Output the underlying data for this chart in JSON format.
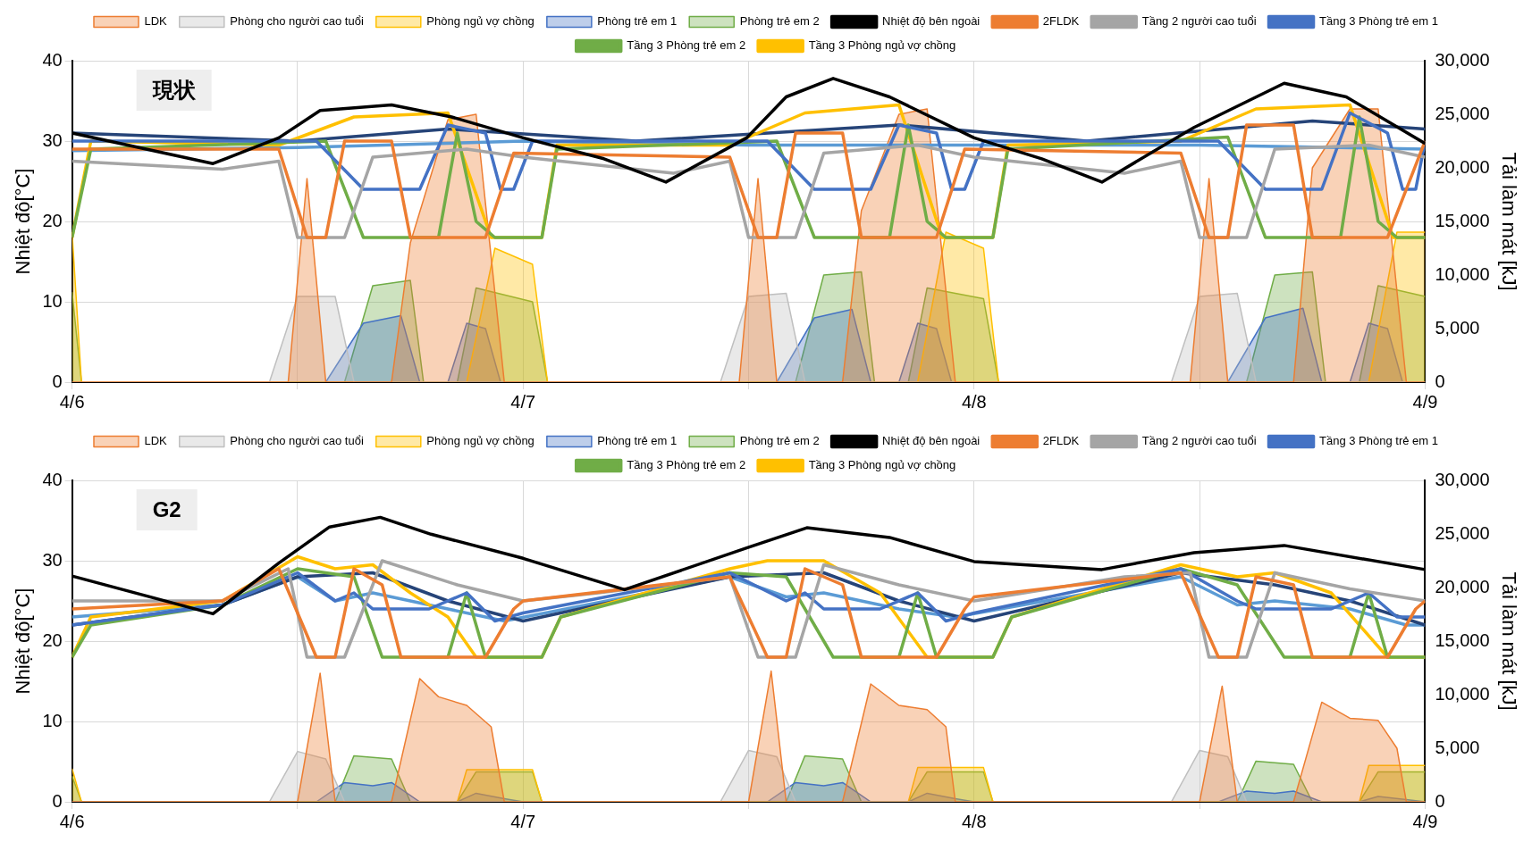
{
  "chart_data": [
    {
      "type": "line",
      "annotations": [
        "現状"
      ],
      "ylabel": "Nhiệt độ[°C]",
      "y2label": "Tải làm mát [kJ]",
      "xlim": [
        "--04-06",
        "--04-09"
      ],
      "xticks": [
        {
          "value": "--04-06",
          "label": "4/6"
        },
        {
          "value": "--04-06T12:00",
          "label": null
        },
        {
          "value": "--04-07",
          "label": "4/7"
        },
        {
          "value": "--04-07T12:00",
          "label": null
        },
        {
          "value": "--04-08",
          "label": "4/8"
        },
        {
          "value": "--04-08T12:00",
          "label": null
        },
        {
          "value": "--04-09",
          "label": "4/9"
        }
      ],
      "ylim": [
        0,
        40
      ],
      "yticks": [
        0,
        10,
        20,
        30,
        40
      ],
      "y2lim": [
        0,
        30000
      ],
      "y2ticks": [
        0,
        {
          "value": 5000,
          "label": "5,000"
        },
        {
          "value": 10000,
          "label": "10,000"
        },
        {
          "value": 15000,
          "label": "15,000"
        },
        {
          "value": 20000,
          "label": "20,000"
        },
        {
          "value": 25000,
          "label": "25,000"
        },
        {
          "value": 30000,
          "label": "30,000"
        }
      ],
      "grid": true,
      "legend": "top",
      "series": [
        {
          "name": "LDK",
          "type": "area",
          "axis": "y2",
          "color": "#ed7d31",
          "x": [
            "--04-06T00:00",
            "--04-06T11:30",
            "--04-06T12:30",
            "--04-06T13:30",
            "--04-06T17:00",
            "--04-06T18:00",
            "--04-06T20:00",
            "--04-06T21:30",
            "--04-06T23:00",
            "--04-07T11:30",
            "--04-07T12:30",
            "--04-07T13:30",
            "--04-07T17:00",
            "--04-07T18:00",
            "--04-07T20:00",
            "--04-07T21:30",
            "--04-07T23:00",
            "--04-08T11:30",
            "--04-08T12:30",
            "--04-08T13:30",
            "--04-08T17:00",
            "--04-08T18:00",
            "--04-08T20:00",
            "--04-08T21:30",
            "--04-08T23:00",
            "--04-09T00:00"
          ],
          "values": [
            0,
            0,
            19000,
            0,
            0,
            13000,
            24500,
            25000,
            0,
            0,
            19000,
            0,
            0,
            16000,
            25000,
            25500,
            0,
            0,
            19000,
            0,
            0,
            20000,
            25500,
            25500,
            0,
            0
          ]
        },
        {
          "name": "Phòng cho người cao tuổi",
          "type": "area",
          "axis": "y2",
          "color": "#bfbfbf",
          "x": [
            "--04-06T00:00",
            "--04-06T10:30",
            "--04-06T12:00",
            "--04-06T14:00",
            "--04-06T15:00",
            "--04-07T10:30",
            "--04-07T12:00",
            "--04-07T14:00",
            "--04-07T15:00",
            "--04-08T10:30",
            "--04-08T12:00",
            "--04-08T14:00",
            "--04-08T15:00",
            "--04-09T00:00"
          ],
          "values": [
            0,
            0,
            8000,
            8000,
            0,
            0,
            8000,
            8300,
            0,
            0,
            8000,
            8300,
            0,
            0
          ]
        },
        {
          "name": "Phòng ngủ vợ chồng",
          "type": "area",
          "axis": "y2",
          "color": "#ffc000",
          "x": [
            "--04-06T00:00",
            "--04-06T00:30",
            "--04-06T21:00",
            "--04-06T22:30",
            "--04-07T00:30",
            "--04-07T01:18",
            "--04-07T21:00",
            "--04-07T22:30",
            "--04-08T00:30",
            "--04-08T01:18",
            "--04-08T21:00",
            "--04-08T22:30",
            "--04-09T00:00"
          ],
          "values": [
            14000,
            0,
            0,
            12500,
            11000,
            0,
            0,
            14000,
            12500,
            0,
            0,
            14000,
            14000
          ]
        },
        {
          "name": "Phòng trẻ em 1",
          "type": "area",
          "axis": "y2",
          "color": "#4472c4",
          "x": [
            "--04-06T00:00",
            "--04-06T13:30",
            "--04-06T15:30",
            "--04-06T17:30",
            "--04-06T18:30",
            "--04-06T20:00",
            "--04-06T21:00",
            "--04-06T22:00",
            "--04-06T22:48",
            "--04-07T13:30",
            "--04-07T15:30",
            "--04-07T17:30",
            "--04-07T18:30",
            "--04-07T20:00",
            "--04-07T21:00",
            "--04-07T22:00",
            "--04-07T22:48",
            "--04-08T13:30",
            "--04-08T15:30",
            "--04-08T17:30",
            "--04-08T18:30",
            "--04-08T20:00",
            "--04-08T21:00",
            "--04-08T22:00",
            "--04-08T22:48",
            "--04-09T00:00"
          ],
          "values": [
            0,
            0,
            5500,
            6200,
            0,
            0,
            5500,
            5000,
            0,
            0,
            6000,
            6800,
            0,
            0,
            5500,
            5000,
            0,
            0,
            6000,
            6900,
            0,
            0,
            5500,
            5000,
            0,
            0
          ]
        },
        {
          "name": "Phòng trẻ em 2",
          "type": "area",
          "axis": "y2",
          "color": "#70ad47",
          "x": [
            "--04-06T00:00",
            "--04-06T00:30",
            "--04-06T14:30",
            "--04-06T16:00",
            "--04-06T18:00",
            "--04-06T18:42",
            "--04-06T20:30",
            "--04-06T21:30",
            "--04-07T00:30",
            "--04-07T01:18",
            "--04-07T14:30",
            "--04-07T16:00",
            "--04-07T18:00",
            "--04-07T18:42",
            "--04-07T20:30",
            "--04-07T21:30",
            "--04-08T00:30",
            "--04-08T01:18",
            "--04-08T14:30",
            "--04-08T16:00",
            "--04-08T18:00",
            "--04-08T18:42",
            "--04-08T20:30",
            "--04-08T21:30",
            "--04-09T00:00"
          ],
          "values": [
            8400,
            0,
            0,
            9000,
            9500,
            0,
            0,
            8800,
            7500,
            0,
            0,
            10000,
            10300,
            0,
            0,
            8800,
            7800,
            0,
            0,
            10000,
            10300,
            0,
            0,
            9000,
            8000
          ]
        },
        {
          "name": "Nhiệt độ bên ngoài",
          "type": "line",
          "color": "#000000",
          "x": [
            "--04-06T00:00",
            "--04-06T07:30",
            "--04-06T11:00",
            "--04-06T13:12",
            "--04-06T17:00",
            "--04-06T20:12",
            "--04-07T00:00",
            "--04-07T04:18",
            "--04-07T07:36",
            "--04-07T11:54",
            "--04-07T14:00",
            "--04-07T16:30",
            "--04-07T19:30",
            "--04-08T00:00",
            "--04-08T03:36",
            "--04-08T06:48",
            "--04-08T11:42",
            "--04-08T16:30",
            "--04-08T19:48",
            "--04-09T00:00"
          ],
          "values": [
            31,
            27.2,
            30.4,
            33.8,
            34.5,
            33,
            30.4,
            27.8,
            24.9,
            30.4,
            35.5,
            37.8,
            35.5,
            30.4,
            27.8,
            24.9,
            31.7,
            37.2,
            35.5,
            29.7
          ]
        },
        {
          "name": "2FLDK",
          "type": "line",
          "color": "#ed7d31",
          "x": [
            "--04-06T00:00",
            "--04-06T11:00",
            "--04-06T12:30",
            "--04-06T13:30",
            "--04-06T14:30",
            "--04-06T17:00",
            "--04-06T18:00",
            "--04-06T22:00",
            "--04-06T23:30",
            "--04-07T11:00",
            "--04-07T12:30",
            "--04-07T13:30",
            "--04-07T14:30",
            "--04-07T17:00",
            "--04-07T18:00",
            "--04-07T22:00",
            "--04-07T23:30",
            "--04-08T11:00",
            "--04-08T12:30",
            "--04-08T13:30",
            "--04-08T14:30",
            "--04-08T17:00",
            "--04-08T18:00",
            "--04-08T22:00",
            "--04-09T00:00"
          ],
          "values": [
            29,
            29,
            18,
            18,
            30,
            30,
            18,
            18,
            28.5,
            28,
            18,
            18,
            31,
            31,
            18,
            18,
            29,
            28.5,
            18,
            18,
            32,
            32,
            18,
            18,
            30
          ]
        },
        {
          "name": "Tầng 2 người cao tuổi",
          "type": "line",
          "color": "#a5a5a5",
          "x": [
            "--04-06T00:00",
            "--04-06T08:00",
            "--04-06T11:00",
            "--04-06T12:00",
            "--04-06T14:30",
            "--04-06T16:00",
            "--04-06T21:00",
            "--04-07T00:00",
            "--04-07T08:00",
            "--04-07T11:00",
            "--04-07T12:00",
            "--04-07T14:30",
            "--04-07T16:00",
            "--04-07T21:00",
            "--04-08T00:00",
            "--04-08T08:00",
            "--04-08T11:00",
            "--04-08T12:00",
            "--04-08T14:30",
            "--04-08T16:00",
            "--04-08T21:00",
            "--04-09T00:00"
          ],
          "values": [
            27.5,
            26.5,
            27.5,
            18,
            18,
            28,
            29,
            28,
            26,
            27.5,
            18,
            18,
            28.5,
            29.5,
            28,
            26,
            27.5,
            18,
            18,
            29,
            29.5,
            28
          ]
        },
        {
          "name": "Tầng 3 Phòng trẻ em 1",
          "type": "line",
          "color": "#4472c4",
          "x": [
            "--04-06T00:00",
            "--04-06T13:00",
            "--04-06T15:30",
            "--04-06T18:30",
            "--04-06T20:00",
            "--04-06T22:00",
            "--04-06T22:48",
            "--04-06T23:30",
            "--04-07T00:30",
            "--04-07T13:00",
            "--04-07T15:30",
            "--04-07T18:30",
            "--04-07T20:00",
            "--04-07T22:00",
            "--04-07T22:48",
            "--04-07T23:30",
            "--04-08T00:30",
            "--04-08T13:00",
            "--04-08T15:30",
            "--04-08T18:30",
            "--04-08T20:00",
            "--04-08T22:00",
            "--04-08T22:48",
            "--04-08T23:30",
            "--04-09T00:00"
          ],
          "values": [
            30,
            30,
            24,
            24,
            32,
            31,
            24,
            24,
            30,
            30,
            24,
            24,
            32,
            31,
            24,
            24,
            30,
            30,
            24,
            24,
            33.5,
            31,
            24,
            24,
            30
          ]
        },
        {
          "name": "Tầng 3 Phòng trẻ em 2",
          "type": "line",
          "color": "#70ad47",
          "x": [
            "--04-06T00:00",
            "--04-06T01:00",
            "--04-06T13:30",
            "--04-06T15:30",
            "--04-06T19:30",
            "--04-06T20:30",
            "--04-06T21:30",
            "--04-06T22:30",
            "--04-07T01:00",
            "--04-07T01:48",
            "--04-07T13:30",
            "--04-07T15:30",
            "--04-07T19:30",
            "--04-07T20:30",
            "--04-07T21:30",
            "--04-07T22:30",
            "--04-08T01:00",
            "--04-08T01:48",
            "--04-08T13:30",
            "--04-08T15:30",
            "--04-08T19:30",
            "--04-08T20:30",
            "--04-08T21:30",
            "--04-08T22:30",
            "--04-09T00:00"
          ],
          "values": [
            18,
            29,
            30,
            18,
            18,
            31,
            20,
            18,
            18,
            29,
            30,
            18,
            18,
            32,
            20,
            18,
            18,
            29,
            30.5,
            18,
            18,
            33,
            20,
            18,
            18
          ]
        },
        {
          "name": "Tầng 3 Phòng ngủ vợ chồng",
          "type": "line",
          "color": "#ffc000",
          "x": [
            "--04-06T00:00",
            "--04-06T01:00",
            "--04-06T11:00",
            "--04-06T15:00",
            "--04-06T20:00",
            "--04-06T22:18",
            "--04-07T01:00",
            "--04-07T01:48",
            "--04-07T11:00",
            "--04-07T15:00",
            "--04-07T20:00",
            "--04-07T22:18",
            "--04-08T01:00",
            "--04-08T01:48",
            "--04-08T11:00",
            "--04-08T15:00",
            "--04-08T20:00",
            "--04-08T22:18",
            "--04-09T00:00"
          ],
          "values": [
            18,
            30,
            29.5,
            33,
            33.5,
            18,
            18,
            29.5,
            29.5,
            33.5,
            34.5,
            18,
            18,
            29.5,
            30,
            34,
            34.5,
            18,
            18
          ]
        },
        {
          "type": "line",
          "color": "#264478",
          "x": [
            "--04-06T00:00",
            "--04-06T12:00",
            "--04-06T20:00",
            "--04-07T06:00",
            "--04-07T20:00",
            "--04-08T06:00",
            "--04-08T18:00",
            "--04-09T00:00"
          ],
          "values": [
            31,
            30,
            31.5,
            30,
            32,
            30,
            32.5,
            31.5
          ]
        },
        {
          "type": "line",
          "color": "#5b9bd5",
          "x": [
            "--04-06T00:00",
            "--04-06T12:00",
            "--04-07T00:00",
            "--04-07T12:00",
            "--04-08T00:00",
            "--04-08T12:00",
            "--04-09T00:00"
          ],
          "values": [
            28.8,
            29.2,
            30,
            29.5,
            29.5,
            29.5,
            29
          ]
        }
      ]
    },
    {
      "type": "line",
      "annotations": [
        "G2"
      ],
      "ylabel": "Nhiệt độ[°C]",
      "y2label": "Tải làm mát [kJ]",
      "xlim": [
        "--04-06",
        "--04-09"
      ],
      "xticks": [
        {
          "value": "--04-06",
          "label": "4/6"
        },
        {
          "value": "--04-06T12:00",
          "label": null
        },
        {
          "value": "--04-07",
          "label": "4/7"
        },
        {
          "value": "--04-07T12:00",
          "label": null
        },
        {
          "value": "--04-08",
          "label": "4/8"
        },
        {
          "value": "--04-08T12:00",
          "label": null
        },
        {
          "value": "--04-09",
          "label": "4/9"
        }
      ],
      "ylim": [
        0,
        40
      ],
      "yticks": [
        0,
        10,
        20,
        30,
        40
      ],
      "y2lim": [
        0,
        30000
      ],
      "y2ticks": [
        0,
        {
          "value": 5000,
          "label": "5,000"
        },
        {
          "value": 10000,
          "label": "10,000"
        },
        {
          "value": 15000,
          "label": "15,000"
        },
        {
          "value": 20000,
          "label": "20,000"
        },
        {
          "value": 25000,
          "label": "25,000"
        },
        {
          "value": 30000,
          "label": "30,000"
        }
      ],
      "grid": true,
      "legend": "top",
      "series": [
        {
          "name": "LDK",
          "type": "area",
          "axis": "y2",
          "color": "#ed7d31",
          "x": [
            "--04-06T00:00",
            "--04-06T12:00",
            "--04-06T13:12",
            "--04-06T14:00",
            "--04-06T17:00",
            "--04-06T18:30",
            "--04-06T19:30",
            "--04-06T21:00",
            "--04-06T22:18",
            "--04-06T23:00",
            "--04-07T12:00",
            "--04-07T13:12",
            "--04-07T14:00",
            "--04-07T17:00",
            "--04-07T18:30",
            "--04-07T20:00",
            "--04-07T21:30",
            "--04-07T22:30",
            "--04-07T23:00",
            "--04-08T12:00",
            "--04-08T13:12",
            "--04-08T14:00",
            "--04-08T17:00",
            "--04-08T18:30",
            "--04-08T20:00",
            "--04-08T21:30",
            "--04-08T22:30",
            "--04-08T23:00",
            "--04-09T00:00"
          ],
          "values": [
            0,
            0,
            12000,
            0,
            0,
            11500,
            9800,
            9000,
            7000,
            0,
            0,
            12200,
            0,
            0,
            11000,
            9000,
            8600,
            7000,
            0,
            0,
            10800,
            0,
            0,
            9300,
            7800,
            7600,
            5000,
            0,
            0
          ]
        },
        {
          "name": "Phòng cho người cao tuổi",
          "type": "area",
          "axis": "y2",
          "color": "#bfbfbf",
          "x": [
            "--04-06T00:00",
            "--04-06T10:30",
            "--04-06T12:00",
            "--04-06T13:30",
            "--04-06T14:30",
            "--04-07T10:30",
            "--04-07T12:00",
            "--04-07T13:30",
            "--04-07T14:30",
            "--04-08T10:30",
            "--04-08T12:00",
            "--04-08T13:30",
            "--04-08T14:30",
            "--04-09T00:00"
          ],
          "values": [
            0,
            0,
            4700,
            4000,
            0,
            0,
            4800,
            4200,
            0,
            0,
            4800,
            4200,
            0,
            0
          ]
        },
        {
          "name": "Phòng ngủ vợ chồng",
          "type": "area",
          "axis": "y2",
          "color": "#ffc000",
          "x": [
            "--04-06T00:00",
            "--04-06T00:30",
            "--04-06T20:30",
            "--04-06T21:00",
            "--04-07T00:30",
            "--04-07T01:00",
            "--04-07T20:30",
            "--04-07T21:00",
            "--04-08T00:30",
            "--04-08T01:00",
            "--04-08T20:30",
            "--04-08T21:00",
            "--04-09T00:00"
          ],
          "values": [
            3100,
            0,
            0,
            3000,
            3000,
            0,
            0,
            3200,
            3200,
            0,
            0,
            3400,
            3400
          ]
        },
        {
          "name": "Phòng trẻ em 1",
          "type": "area",
          "axis": "y2",
          "color": "#4472c4",
          "x": [
            "--04-06T00:00",
            "--04-06T13:00",
            "--04-06T14:30",
            "--04-06T16:00",
            "--04-06T17:00",
            "--04-06T18:30",
            "--04-06T20:30",
            "--04-06T21:30",
            "--04-06T23:00",
            "--04-07T00:00",
            "--04-07T13:00",
            "--04-07T14:30",
            "--04-07T16:00",
            "--04-07T17:00",
            "--04-07T18:30",
            "--04-07T20:30",
            "--04-07T21:30",
            "--04-07T23:00",
            "--04-08T00:00",
            "--04-08T13:00",
            "--04-08T14:30",
            "--04-08T16:00",
            "--04-08T17:00",
            "--04-08T18:30",
            "--04-08T20:30",
            "--04-08T21:30",
            "--04-08T23:00",
            "--04-09T00:00"
          ],
          "values": [
            0,
            0,
            1800,
            1500,
            1800,
            0,
            0,
            800,
            300,
            0,
            0,
            1800,
            1500,
            1800,
            0,
            0,
            800,
            300,
            0,
            0,
            1000,
            800,
            1000,
            0,
            0,
            500,
            200,
            0
          ]
        },
        {
          "name": "Phòng trẻ em 2",
          "type": "area",
          "axis": "y2",
          "color": "#70ad47",
          "x": [
            "--04-06T00:00",
            "--04-06T00:30",
            "--04-06T14:00",
            "--04-06T15:00",
            "--04-06T17:00",
            "--04-06T18:00",
            "--04-06T20:30",
            "--04-06T21:30",
            "--04-07T00:30",
            "--04-07T01:00",
            "--04-07T14:00",
            "--04-07T15:00",
            "--04-07T17:00",
            "--04-07T18:00",
            "--04-07T20:30",
            "--04-07T21:30",
            "--04-08T00:30",
            "--04-08T01:00",
            "--04-08T14:00",
            "--04-08T15:00",
            "--04-08T17:00",
            "--04-08T18:00",
            "--04-08T20:30",
            "--04-08T21:30",
            "--04-09T00:00"
          ],
          "values": [
            2400,
            0,
            0,
            4300,
            4000,
            0,
            0,
            2800,
            2800,
            0,
            0,
            4300,
            4000,
            0,
            0,
            2800,
            2800,
            0,
            0,
            3800,
            3500,
            0,
            0,
            2800,
            2800
          ]
        },
        {
          "name": "Nhiệt độ bên ngoài",
          "type": "line",
          "color": "#000000",
          "x": [
            "--04-06T00:00",
            "--04-06T07:30",
            "--04-06T11:00",
            "--04-06T13:42",
            "--04-06T16:24",
            "--04-06T19:06",
            "--04-07T00:00",
            "--04-07T05:24",
            "--04-07T11:54",
            "--04-07T15:06",
            "--04-07T19:30",
            "--04-08T00:00",
            "--04-08T06:48",
            "--04-08T11:42",
            "--04-08T16:30",
            "--04-09T00:00"
          ],
          "values": [
            28.1,
            23.4,
            29.7,
            34.2,
            35.4,
            33.3,
            30.3,
            26.4,
            31.6,
            34.1,
            32.9,
            29.9,
            28.9,
            31,
            31.9,
            28.9
          ]
        },
        {
          "name": "2FLDK",
          "type": "line",
          "color": "#ed7d31",
          "x": [
            "--04-06T00:00",
            "--04-06T08:00",
            "--04-06T11:00",
            "--04-06T13:00",
            "--04-06T14:00",
            "--04-06T15:00",
            "--04-06T16:30",
            "--04-06T17:30",
            "--04-06T22:00",
            "--04-06T23:30",
            "--04-07T00:00",
            "--04-07T11:00",
            "--04-07T13:00",
            "--04-07T14:00",
            "--04-07T15:00",
            "--04-07T17:00",
            "--04-07T18:00",
            "--04-07T22:00",
            "--04-07T23:30",
            "--04-08T00:00",
            "--04-08T11:00",
            "--04-08T13:00",
            "--04-08T14:00",
            "--04-08T15:00",
            "--04-08T17:00",
            "--04-08T18:00",
            "--04-08T22:00",
            "--04-08T23:30",
            "--04-09T00:00"
          ],
          "values": [
            24,
            25,
            29,
            18,
            18,
            29,
            27,
            18,
            18,
            24,
            25,
            28,
            18,
            18,
            29,
            27,
            18,
            18,
            24,
            25.5,
            28.5,
            18,
            18,
            28,
            27,
            18,
            18,
            24,
            25
          ]
        },
        {
          "name": "Tầng 2 người cao tuổi",
          "type": "line",
          "color": "#a5a5a5",
          "x": [
            "--04-06T00:00",
            "--04-06T08:00",
            "--04-06T11:30",
            "--04-06T12:30",
            "--04-06T14:30",
            "--04-06T16:30",
            "--04-06T20:30",
            "--04-07T00:00",
            "--04-07T04:00",
            "--04-07T11:00",
            "--04-07T12:30",
            "--04-07T14:30",
            "--04-07T16:00",
            "--04-07T20:00",
            "--04-08T00:00",
            "--04-08T08:00",
            "--04-08T11:30",
            "--04-08T12:30",
            "--04-08T14:30",
            "--04-08T16:00",
            "--04-08T20:00",
            "--04-09T00:00"
          ],
          "values": [
            25,
            25,
            29,
            18,
            18,
            30,
            27,
            25,
            26,
            28,
            18,
            18,
            29.5,
            27,
            25,
            28,
            28.5,
            18,
            18,
            28.5,
            26.5,
            25
          ]
        },
        {
          "name": "Tầng 3 Phòng trẻ em 1",
          "type": "line",
          "color": "#4472c4",
          "x": [
            "--04-06T00:00",
            "--04-06T08:00",
            "--04-06T12:00",
            "--04-06T14:00",
            "--04-06T15:00",
            "--04-06T16:00",
            "--04-06T19:00",
            "--04-06T21:00",
            "--04-06T22:30",
            "--04-07T00:00",
            "--04-07T11:00",
            "--04-07T14:00",
            "--04-07T15:00",
            "--04-07T16:00",
            "--04-07T19:00",
            "--04-07T21:00",
            "--04-07T22:30",
            "--04-08T00:00",
            "--04-08T11:00",
            "--04-08T14:00",
            "--04-08T15:00",
            "--04-08T19:00",
            "--04-08T21:00",
            "--04-08T22:30",
            "--04-09T00:00"
          ],
          "values": [
            22,
            24.5,
            28.5,
            25,
            26,
            24,
            24,
            26,
            22.5,
            23.5,
            28.5,
            25,
            26,
            24,
            24,
            26,
            22.5,
            23.5,
            29,
            25,
            24,
            24,
            26,
            23,
            23
          ]
        },
        {
          "name": "Tầng 3 Phòng trẻ em 2",
          "type": "line",
          "color": "#70ad47",
          "x": [
            "--04-06T00:00",
            "--04-06T01:00",
            "--04-06T08:00",
            "--04-06T12:00",
            "--04-06T15:00",
            "--04-06T16:30",
            "--04-06T20:00",
            "--04-06T21:00",
            "--04-06T22:00",
            "--04-07T01:00",
            "--04-07T02:00",
            "--04-07T11:00",
            "--04-07T14:00",
            "--04-07T16:30",
            "--04-07T20:00",
            "--04-07T21:00",
            "--04-07T22:00",
            "--04-08T01:00",
            "--04-08T02:00",
            "--04-08T11:00",
            "--04-08T14:00",
            "--04-08T16:30",
            "--04-08T20:00",
            "--04-08T21:00",
            "--04-08T22:00",
            "--04-09T00:00"
          ],
          "values": [
            18,
            22,
            24.5,
            29,
            28,
            18,
            18,
            26,
            18,
            18,
            23,
            28.5,
            28,
            18,
            18,
            26,
            18,
            18,
            23,
            29,
            27,
            18,
            18,
            26,
            18,
            18
          ]
        },
        {
          "name": "Tầng 3 Phòng ngủ vợ chồng",
          "type": "line",
          "color": "#ffc000",
          "x": [
            "--04-06T00:00",
            "--04-06T01:00",
            "--04-06T08:00",
            "--04-06T12:00",
            "--04-06T14:00",
            "--04-06T16:00",
            "--04-06T18:00",
            "--04-06T20:00",
            "--04-06T21:30",
            "--04-07T01:00",
            "--04-07T02:00",
            "--04-07T11:00",
            "--04-07T13:00",
            "--04-07T16:00",
            "--04-07T19:00",
            "--04-07T21:30",
            "--04-08T01:00",
            "--04-08T02:00",
            "--04-08T11:00",
            "--04-08T14:00",
            "--04-08T16:00",
            "--04-08T19:00",
            "--04-08T22:00",
            "--04-09T00:00"
          ],
          "values": [
            18,
            23,
            25,
            30.5,
            29,
            29.5,
            26,
            23,
            18,
            18,
            23,
            29,
            30,
            30,
            26,
            18,
            18,
            23,
            29.5,
            28,
            28.5,
            26,
            18,
            18
          ]
        },
        {
          "type": "line",
          "color": "#264478",
          "x": [
            "--04-06T00:00",
            "--04-06T08:00",
            "--04-06T12:00",
            "--04-06T16:00",
            "--04-06T20:00",
            "--04-07T00:00",
            "--04-07T11:00",
            "--04-07T16:00",
            "--04-07T20:00",
            "--04-08T00:00",
            "--04-08T11:00",
            "--04-08T16:00",
            "--04-08T20:00",
            "--04-09T00:00"
          ],
          "values": [
            22,
            24.5,
            28,
            28.5,
            25,
            22.5,
            28,
            28.5,
            25,
            22.5,
            28.5,
            27,
            25,
            22
          ]
        },
        {
          "type": "line",
          "color": "#5b9bd5",
          "x": [
            "--04-06T00:00",
            "--04-06T08:00",
            "--04-06T12:00",
            "--04-06T14:00",
            "--04-06T16:00",
            "--04-06T20:00",
            "--04-06T23:00",
            "--04-07T11:00",
            "--04-07T14:00",
            "--04-07T16:00",
            "--04-07T20:00",
            "--04-07T23:00",
            "--04-08T11:00",
            "--04-08T14:00",
            "--04-08T16:00",
            "--04-08T20:00",
            "--04-08T23:00",
            "--04-09T00:00"
          ],
          "values": [
            23,
            24.5,
            28,
            25,
            26,
            24,
            22.5,
            28,
            25.5,
            26,
            24,
            23,
            28,
            24.5,
            25,
            24,
            22,
            22
          ]
        }
      ]
    }
  ]
}
